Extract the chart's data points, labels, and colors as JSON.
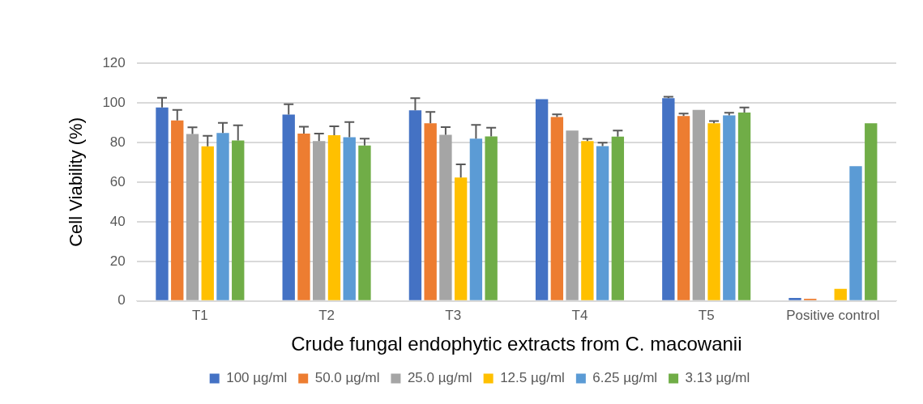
{
  "chart_data": {
    "type": "bar",
    "xlabel": "Crude fungal endophytic extracts from C. macowanii",
    "ylabel": "Cell Viability (%)",
    "categories": [
      "T1",
      "T2",
      "T3",
      "T4",
      "T5",
      "Positive control"
    ],
    "ylim": [
      0,
      120
    ],
    "yticks": [
      0,
      20,
      40,
      60,
      80,
      100,
      120
    ],
    "grid": "y",
    "legend": "bottom",
    "series": [
      {
        "name": "100 µg/ml",
        "color": "#4472c4",
        "values": [
          97.6,
          94.1,
          96.2,
          101.8,
          102.3,
          1.6
        ],
        "errors": [
          4.9,
          5.2,
          6.1,
          null,
          0.8,
          null
        ]
      },
      {
        "name": "50.0 µg/ml",
        "color": "#ed7d31",
        "values": [
          91.1,
          84.5,
          89.7,
          92.8,
          93.3,
          1.1
        ],
        "errors": [
          5.3,
          3.4,
          5.7,
          1.4,
          1.3,
          null
        ]
      },
      {
        "name": "25.0 µg/ml",
        "color": "#a5a5a5",
        "values": [
          84.3,
          80.7,
          83.9,
          86.0,
          96.4,
          null
        ],
        "errors": [
          3.3,
          3.8,
          3.8,
          null,
          null,
          null
        ]
      },
      {
        "name": "12.5 µg/ml",
        "color": "#ffc000",
        "values": [
          78.0,
          83.7,
          62.3,
          80.7,
          89.7,
          6.1
        ],
        "errors": [
          5.3,
          4.4,
          6.6,
          1.1,
          1.1,
          null
        ]
      },
      {
        "name": "6.25 µg/ml",
        "color": "#5b9bd5",
        "values": [
          84.8,
          82.6,
          81.9,
          78.1,
          93.7,
          68.0
        ],
        "errors": [
          5.1,
          7.7,
          7.0,
          1.8,
          1.3,
          null
        ]
      },
      {
        "name": "3.13 µg/ml",
        "color": "#70ad47",
        "values": [
          81.0,
          78.4,
          83.0,
          82.9,
          95.1,
          89.7
        ],
        "errors": [
          7.7,
          3.5,
          4.4,
          3.1,
          2.5,
          null
        ]
      }
    ]
  }
}
